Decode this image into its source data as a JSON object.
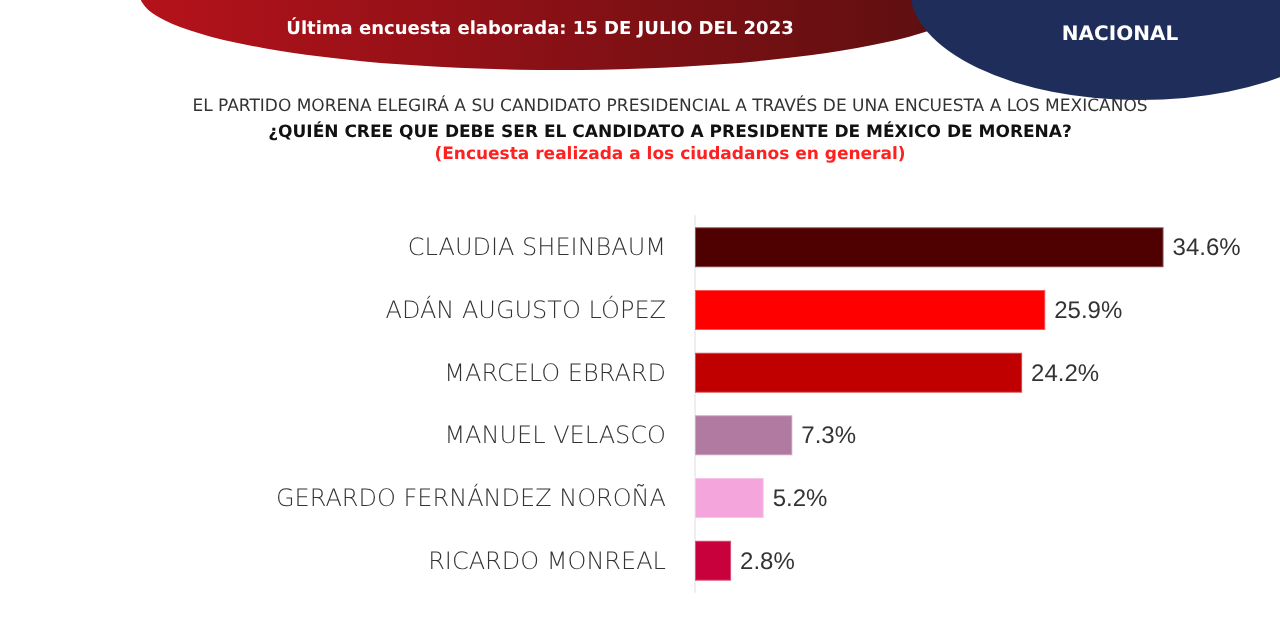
{
  "chart_data": {
    "type": "bar",
    "orientation": "horizontal",
    "title": "EL PARTIDO MORENA ELEGIRÁ A SU CANDIDATO PRESIDENCIAL A TRAVÉS DE UNA ENCUESTA A LOS MEXICANOS",
    "subtitle": "¿QUIÉN CREE QUE DEBE SER EL CANDIDATO A PRESIDENTE DE MÉXICO DE MORENA?",
    "annotations": [
      "Última encuesta elaborada:  15 DE JULIO DEL 2023",
      "NACIONAL",
      "(Encuesta realizada a los ciudadanos en general)"
    ],
    "categories": [
      "CLAUDIA SHEINBAUM",
      "ADÁN AUGUSTO LÓPEZ",
      "MARCELO EBRARD",
      "MANUEL VELASCO",
      "GERARDO FERNÁNDEZ NOROÑA",
      "RICARDO MONREAL"
    ],
    "values": [
      34.6,
      25.9,
      24.2,
      7.3,
      5.2,
      2.8
    ],
    "value_labels": [
      "34.6%",
      "25.9%",
      "24.2%",
      "7.3%",
      "5.2%",
      "2.8%"
    ],
    "colors": [
      "#4f0000",
      "#ff0000",
      "#c00000",
      "#b07aa1",
      "#f4a6dc",
      "#c8003c"
    ]
  }
}
